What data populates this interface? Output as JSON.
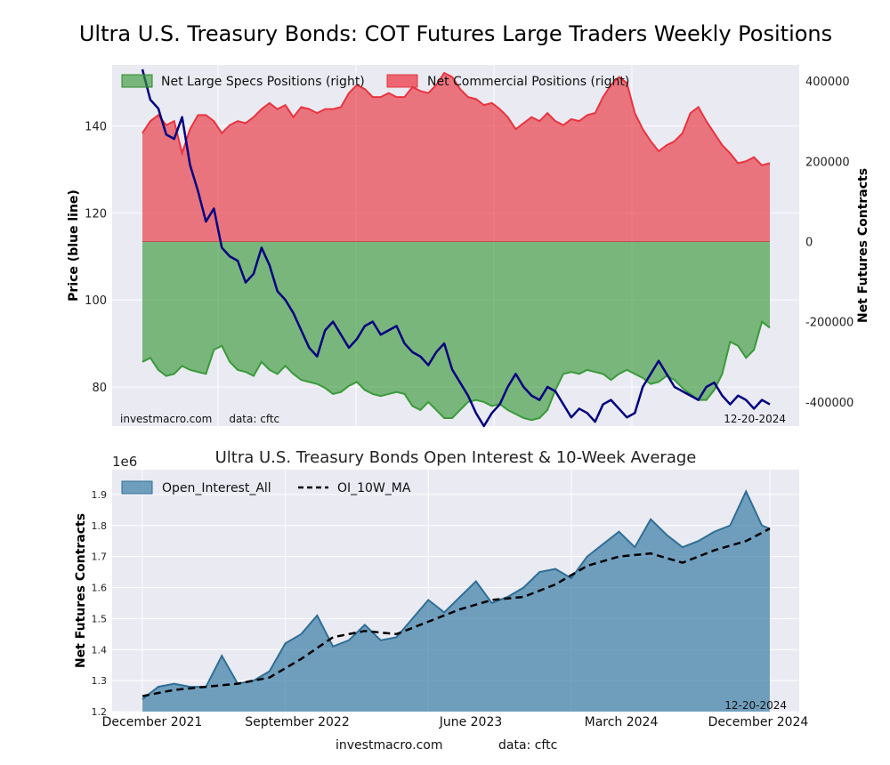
{
  "title": "Ultra U.S. Treasury Bonds: COT Futures Large Traders Weekly Positions",
  "subtitle": "Ultra U.S. Treasury Bonds Open Interest & 10-Week Average",
  "footer": {
    "site": "investmacro.com",
    "data": "data: cftc"
  },
  "colors": {
    "green": "#3a9a3a",
    "red": "#e8343f",
    "blue_line": "#000080",
    "oi": "#3a7ea6",
    "grid_bg": "#eaeaf2"
  },
  "chart_data": [
    {
      "type": "area",
      "ylabel_left": "Price (blue line)",
      "ylabel_right": "Net Futures Contracts",
      "left_ticks": [
        "80",
        "100",
        "120",
        "140"
      ],
      "right_ticks": [
        "-400000",
        "-200000",
        "0",
        "200000",
        "400000"
      ],
      "ylim_left": [
        71,
        154
      ],
      "ylim_right": [
        -460000,
        440000
      ],
      "legend": [
        "Net Large Specs Positions (right)",
        "Net Commercial Positions (right)"
      ],
      "legend_position": "top",
      "source_text": "investmacro.com     data: cftc",
      "date_text": "12-20-2024",
      "series": [
        {
          "name": "Net Large Specs Positions (right)",
          "x": [
            0,
            2,
            4,
            6,
            8,
            10,
            12,
            14,
            16,
            18,
            20,
            22,
            24,
            26,
            28,
            30,
            32,
            34,
            36,
            38,
            40,
            42,
            44,
            46,
            48,
            50,
            52,
            54,
            56,
            58,
            60,
            62,
            64,
            66,
            68,
            70,
            72,
            74,
            76,
            78,
            80,
            82,
            84,
            86,
            88,
            90,
            92,
            94,
            96,
            98,
            100,
            102,
            104,
            106,
            108,
            110,
            112,
            114,
            116,
            118,
            120,
            122,
            124,
            126,
            128,
            130,
            132,
            134,
            136,
            138,
            140,
            142,
            144,
            146,
            148,
            150,
            152,
            154,
            156,
            158
          ],
          "values": [
            -300000,
            -290000,
            -320000,
            -335000,
            -330000,
            -310000,
            -320000,
            -325000,
            -330000,
            -270000,
            -260000,
            -300000,
            -320000,
            -325000,
            -335000,
            -300000,
            -320000,
            -330000,
            -310000,
            -330000,
            -345000,
            -350000,
            -355000,
            -365000,
            -380000,
            -375000,
            -360000,
            -350000,
            -370000,
            -380000,
            -385000,
            -380000,
            -375000,
            -380000,
            -410000,
            -420000,
            -400000,
            -420000,
            -440000,
            -440000,
            -420000,
            -400000,
            -395000,
            -400000,
            -410000,
            -405000,
            -420000,
            -430000,
            -440000,
            -445000,
            -440000,
            -420000,
            -370000,
            -330000,
            -325000,
            -330000,
            -320000,
            -325000,
            -330000,
            -345000,
            -330000,
            -320000,
            -330000,
            -340000,
            -355000,
            -350000,
            -335000,
            -345000,
            -365000,
            -380000,
            -395000,
            -395000,
            -370000,
            -330000,
            -250000,
            -260000,
            -290000,
            -270000,
            -200000,
            -215000
          ]
        },
        {
          "name": "Net Commercial Positions (right)",
          "x": [
            0,
            2,
            4,
            6,
            8,
            10,
            12,
            14,
            16,
            18,
            20,
            22,
            24,
            26,
            28,
            30,
            32,
            34,
            36,
            38,
            40,
            42,
            44,
            46,
            48,
            50,
            52,
            54,
            56,
            58,
            60,
            62,
            64,
            66,
            68,
            70,
            72,
            74,
            76,
            78,
            80,
            82,
            84,
            86,
            88,
            90,
            92,
            94,
            96,
            98,
            100,
            102,
            104,
            106,
            108,
            110,
            112,
            114,
            116,
            118,
            120,
            122,
            124,
            126,
            128,
            130,
            132,
            134,
            136,
            138,
            140,
            142,
            144,
            146,
            148,
            150,
            152,
            154,
            156,
            158
          ],
          "values": [
            270000,
            300000,
            315000,
            290000,
            300000,
            220000,
            280000,
            315000,
            315000,
            300000,
            270000,
            290000,
            300000,
            295000,
            310000,
            330000,
            345000,
            330000,
            340000,
            310000,
            335000,
            330000,
            320000,
            330000,
            330000,
            335000,
            370000,
            390000,
            380000,
            360000,
            360000,
            370000,
            360000,
            360000,
            385000,
            375000,
            370000,
            390000,
            420000,
            410000,
            380000,
            360000,
            355000,
            340000,
            345000,
            330000,
            310000,
            280000,
            295000,
            310000,
            300000,
            320000,
            300000,
            290000,
            305000,
            300000,
            315000,
            320000,
            360000,
            390000,
            410000,
            395000,
            320000,
            280000,
            250000,
            225000,
            240000,
            250000,
            270000,
            320000,
            335000,
            300000,
            270000,
            240000,
            220000,
            195000,
            200000,
            210000,
            190000,
            195000
          ]
        },
        {
          "name": "Price (blue line)",
          "x": [
            0,
            2,
            4,
            6,
            8,
            10,
            12,
            14,
            16,
            18,
            20,
            22,
            24,
            26,
            28,
            30,
            32,
            34,
            36,
            38,
            40,
            42,
            44,
            46,
            48,
            50,
            52,
            54,
            56,
            58,
            60,
            62,
            64,
            66,
            68,
            70,
            72,
            74,
            76,
            78,
            80,
            82,
            84,
            86,
            88,
            90,
            92,
            94,
            96,
            98,
            100,
            102,
            104,
            106,
            108,
            110,
            112,
            114,
            116,
            118,
            120,
            122,
            124,
            126,
            128,
            130,
            132,
            134,
            136,
            138,
            140,
            142,
            144,
            146,
            148,
            150,
            152,
            154,
            156,
            158
          ],
          "values": [
            153,
            146,
            144,
            138,
            137,
            142,
            131,
            125,
            118,
            121,
            112,
            110,
            109,
            104,
            106,
            112,
            108,
            102,
            100,
            97,
            93,
            89,
            87,
            93,
            95,
            92,
            89,
            91,
            94,
            95,
            92,
            93,
            94,
            90,
            88,
            87,
            85,
            88,
            90,
            84,
            81,
            78,
            74,
            71,
            74,
            76,
            80,
            83,
            80,
            78,
            77,
            80,
            79,
            76,
            73,
            75,
            74,
            72,
            76,
            77,
            75,
            73,
            74,
            80,
            83,
            86,
            83,
            80,
            79,
            78,
            77,
            80,
            81,
            78,
            76,
            78,
            77,
            75,
            77,
            76
          ]
        }
      ]
    },
    {
      "type": "area",
      "ylabel": "Net Futures Contracts",
      "exponent_label": "1e6",
      "y_ticks": [
        "1.2",
        "1.3",
        "1.4",
        "1.5",
        "1.6",
        "1.7",
        "1.8",
        "1.9"
      ],
      "ylim": [
        1.2,
        1.98
      ],
      "x_ticks": [
        "December 2021",
        "September 2022",
        "June 2023",
        "March 2024",
        "December 2024"
      ],
      "legend": [
        "Open_Interest_All",
        "OI_10W_MA"
      ],
      "legend_position": "top-left",
      "date_text": "12-20-2024",
      "series": [
        {
          "name": "Open_Interest_All",
          "x": [
            0,
            4,
            8,
            12,
            16,
            20,
            24,
            28,
            32,
            36,
            40,
            44,
            48,
            52,
            56,
            60,
            64,
            68,
            72,
            76,
            80,
            84,
            88,
            92,
            96,
            100,
            104,
            108,
            112,
            116,
            120,
            124,
            128,
            132,
            136,
            140,
            144,
            148,
            152,
            156,
            158
          ],
          "values": [
            1.24,
            1.28,
            1.29,
            1.28,
            1.28,
            1.38,
            1.29,
            1.3,
            1.33,
            1.42,
            1.45,
            1.51,
            1.41,
            1.43,
            1.48,
            1.43,
            1.44,
            1.5,
            1.56,
            1.52,
            1.57,
            1.62,
            1.55,
            1.57,
            1.6,
            1.65,
            1.66,
            1.63,
            1.7,
            1.74,
            1.78,
            1.73,
            1.82,
            1.77,
            1.73,
            1.75,
            1.78,
            1.8,
            1.91,
            1.8,
            1.79
          ]
        },
        {
          "name": "OI_10W_MA",
          "x": [
            0,
            8,
            16,
            24,
            32,
            40,
            48,
            56,
            64,
            72,
            80,
            88,
            96,
            104,
            112,
            120,
            128,
            136,
            144,
            152,
            158
          ],
          "values": [
            1.25,
            1.27,
            1.28,
            1.29,
            1.31,
            1.37,
            1.44,
            1.46,
            1.45,
            1.49,
            1.53,
            1.56,
            1.57,
            1.61,
            1.67,
            1.7,
            1.71,
            1.68,
            1.72,
            1.75,
            1.79
          ]
        }
      ]
    }
  ]
}
